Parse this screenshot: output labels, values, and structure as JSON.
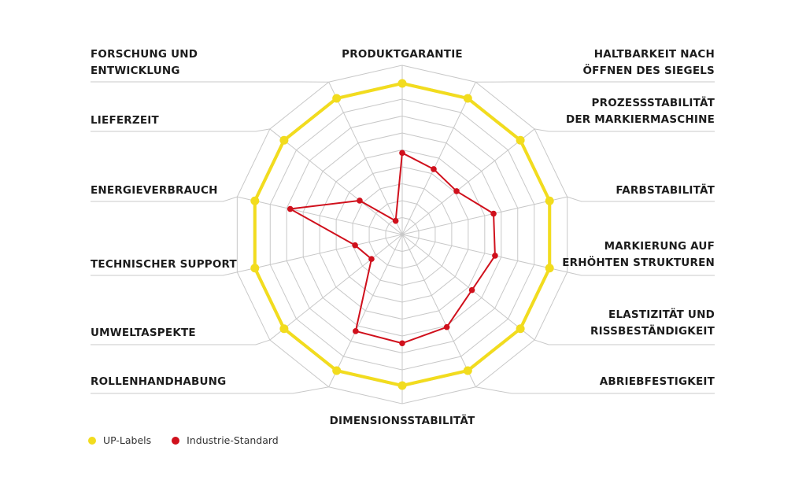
{
  "chart_data": {
    "type": "radar",
    "title": "",
    "rmax": 10,
    "rings": 10,
    "grid": true,
    "legend_position": "bottom-left",
    "axes": [
      "PRODUKTGARANTIE",
      "HALTBARKEIT NACH ÖFFNEN DES SIEGELS",
      "PROZESSSTABILITÄT DER MARKIERMASCHINE",
      "FARBSTABILITÄT",
      "MARKIERUNG AUF ERHÖHTEN STRUKTUREN",
      "ELASTIZITÄT UND RISSBESTÄNDIGKEIT",
      "ABRIEBFESTIGKEIT",
      "DIMENSIONSSTABILITÄT",
      "ROLLENHANDHABUNG",
      "UMWELTASPEKTE",
      "TECHNISCHER SUPPORT",
      "ENERGIEVERBRAUCH",
      "LIEFERZEIT",
      "FORSCHUNG UND ENTWICKLUNG"
    ],
    "series": [
      {
        "name": "UP-Labels",
        "color": "#f2dc1e",
        "values": [
          10,
          10,
          10,
          10,
          10,
          10,
          10,
          10,
          10,
          10,
          10,
          10,
          10,
          10
        ]
      },
      {
        "name": "Industrie-Standard",
        "color": "#d0101c",
        "values": [
          5.4,
          4.8,
          4.6,
          6.2,
          6.3,
          5.9,
          6.8,
          7.2,
          7.1,
          2.6,
          3.2,
          7.6,
          3.6,
          1.0
        ]
      }
    ]
  },
  "legend": {
    "items": [
      {
        "label": "UP-Labels",
        "color": "#f2dc1e"
      },
      {
        "label": "Industrie-Standard",
        "color": "#d0101c"
      }
    ]
  },
  "labels": [
    {
      "lines": [
        "PRODUKTGARANTIE"
      ]
    },
    {
      "lines": [
        "HALTBARKEIT NACH",
        "ÖFFNEN DES SIEGELS"
      ]
    },
    {
      "lines": [
        "PROZESSSTABILITÄT",
        "DER MARKIERMASCHINE"
      ]
    },
    {
      "lines": [
        "FARBSTABILITÄT"
      ]
    },
    {
      "lines": [
        "MARKIERUNG AUF",
        "ERHÖHTEN STRUKTUREN"
      ]
    },
    {
      "lines": [
        "ELASTIZITÄT UND",
        "RISSBESTÄNDIGKEIT"
      ]
    },
    {
      "lines": [
        "ABRIEBFESTIGKEIT"
      ]
    },
    {
      "lines": [
        "DIMENSIONSSTABILITÄT"
      ]
    },
    {
      "lines": [
        "ROLLENHANDHABUNG"
      ]
    },
    {
      "lines": [
        "UMWELTASPEKTE"
      ]
    },
    {
      "lines": [
        "TECHNISCHER SUPPORT"
      ]
    },
    {
      "lines": [
        "ENERGIEVERBRAUCH"
      ]
    },
    {
      "lines": [
        "LIEFERZEIT"
      ]
    },
    {
      "lines": [
        "FORSCHUNG UND",
        "ENTWICKLUNG"
      ]
    }
  ]
}
